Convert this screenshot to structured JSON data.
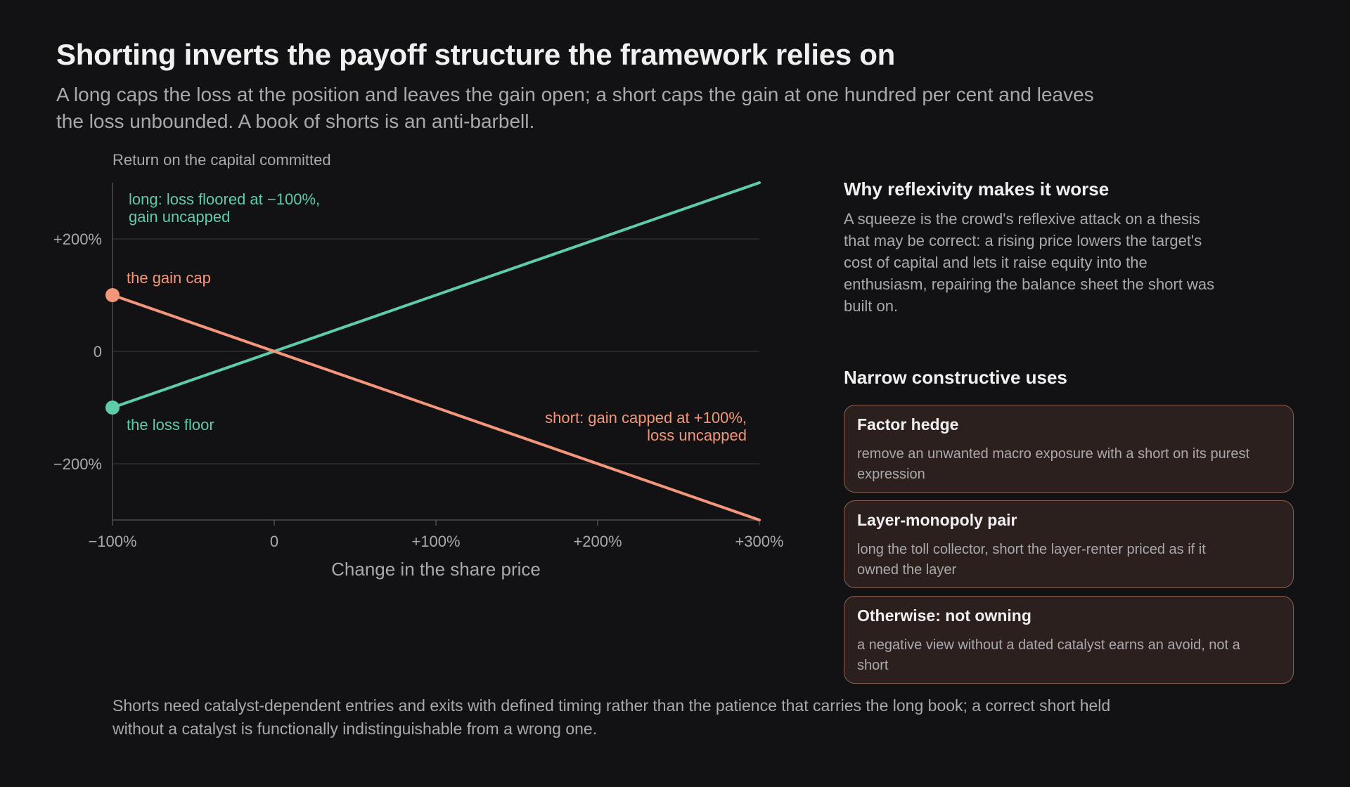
{
  "title": "Shorting inverts the payoff structure the framework relies on",
  "subtitle": "A long caps the loss at the position and leaves the gain open; a short caps the gain at one hundred per cent and leaves the loss unbounded. A book of shorts is an anti-barbell.",
  "colors": {
    "background": "#121214",
    "long": "#5fcca9",
    "short": "#f4967a",
    "muted_text": "#a9a9ad",
    "card_fill": "#2c201f",
    "card_border": "#8a5f52"
  },
  "chart_data": {
    "type": "line",
    "ylabel": "Return on the capital committed",
    "xlabel": "Change in the share price",
    "xlim": [
      -100,
      300
    ],
    "ylim": [
      -300,
      300
    ],
    "x_ticks": [
      -100,
      0,
      100,
      200,
      300
    ],
    "x_tick_labels": [
      "−100%",
      "0",
      "+100%",
      "+200%",
      "+300%"
    ],
    "y_ticks": [
      200,
      0,
      -200
    ],
    "y_tick_labels": [
      "+200%",
      "0",
      "−200%"
    ],
    "grid": "horizontal",
    "series": [
      {
        "key": "long",
        "color": "#5fcca9",
        "x": [
          -100,
          300
        ],
        "y": [
          -100,
          300
        ],
        "label_lines": [
          "long: loss floored at −100%,",
          "gain uncapped"
        ]
      },
      {
        "key": "short",
        "color": "#f4967a",
        "x": [
          -100,
          300
        ],
        "y": [
          100,
          -300
        ],
        "label_lines": [
          "short: gain capped at +100%,",
          "loss uncapped"
        ]
      }
    ],
    "annotations": [
      {
        "text": "the gain cap",
        "x": -100,
        "y": 100,
        "color": "#f4967a",
        "marker": true
      },
      {
        "text": "the loss floor",
        "x": -100,
        "y": -100,
        "color": "#5fcca9",
        "marker": true
      }
    ]
  },
  "sidebar": {
    "reflexivity_heading": "Why reflexivity makes it worse",
    "reflexivity_body": "A squeeze is the crowd's reflexive attack on a thesis that may be correct: a rising price lowers the target's cost of capital and lets it raise equity into the enthusiasm, repairing the balance sheet the short was built on.",
    "uses_heading": "Narrow constructive uses",
    "cards": [
      {
        "title": "Factor hedge",
        "text": "remove an unwanted macro exposure with a short on its purest expression"
      },
      {
        "title": "Layer-monopoly pair",
        "text": "long the toll collector, short the layer-renter priced as if it owned the layer"
      },
      {
        "title": "Otherwise: not owning",
        "text": "a negative view without a dated catalyst earns an avoid, not a short"
      }
    ]
  },
  "footer": "Shorts need catalyst-dependent entries and exits with defined timing rather than the patience that carries the long book; a correct short held without a catalyst is functionally indistinguishable from a wrong one."
}
